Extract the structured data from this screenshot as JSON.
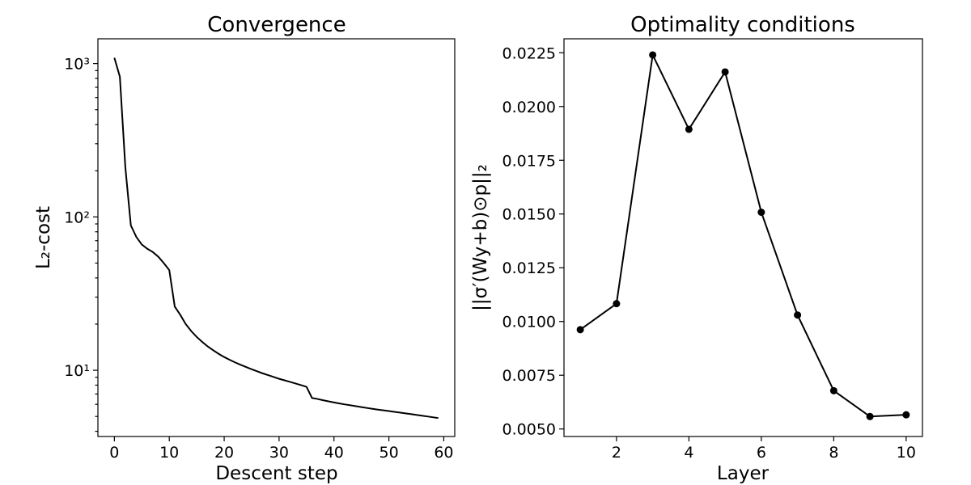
{
  "chart_data": [
    {
      "type": "line",
      "title": "Convergence",
      "xlabel": "Descent step",
      "ylabel": "L₂-cost",
      "yscale": "log",
      "xlim": [
        -3,
        62
      ],
      "ylim": [
        3.7,
        1450
      ],
      "xticks": [
        0,
        10,
        20,
        30,
        40,
        50,
        60
      ],
      "yticks": [
        10,
        100,
        1000
      ],
      "ytick_labels": [
        "10¹",
        "10²",
        "10³"
      ],
      "grid": false,
      "series": [
        {
          "color": "#000000",
          "x": [
            0,
            1,
            2,
            3,
            4,
            5,
            6,
            7,
            8,
            9,
            10,
            11,
            12,
            13,
            14,
            15,
            16,
            17,
            18,
            19,
            20,
            21,
            22,
            23,
            24,
            25,
            26,
            27,
            28,
            29,
            30,
            31,
            32,
            33,
            34,
            35,
            36,
            37,
            38,
            39,
            40,
            41,
            42,
            43,
            44,
            45,
            46,
            47,
            48,
            49,
            50,
            51,
            52,
            53,
            54,
            55,
            56,
            57,
            58,
            59
          ],
          "y": [
            1090,
            820,
            210,
            88,
            74,
            66,
            62,
            59,
            55,
            50,
            45,
            26,
            23,
            20,
            18,
            16.5,
            15.3,
            14.3,
            13.5,
            12.8,
            12.2,
            11.7,
            11.25,
            10.85,
            10.5,
            10.15,
            9.85,
            9.55,
            9.3,
            9.05,
            8.8,
            8.6,
            8.4,
            8.2,
            8.0,
            7.8,
            6.6,
            6.5,
            6.38,
            6.27,
            6.17,
            6.08,
            5.99,
            5.91,
            5.83,
            5.75,
            5.68,
            5.61,
            5.54,
            5.48,
            5.42,
            5.36,
            5.3,
            5.24,
            5.18,
            5.12,
            5.06,
            5.0,
            4.94,
            4.88
          ]
        }
      ]
    },
    {
      "type": "line",
      "title": "Optimality conditions",
      "xlabel": "Layer",
      "ylabel": "||σ′(Wy+b)⊙p||₂",
      "xlim": [
        0.55,
        10.45
      ],
      "ylim": [
        0.00465,
        0.02315
      ],
      "xticks": [
        2,
        4,
        6,
        8,
        10
      ],
      "yticks": [
        0.005,
        0.0075,
        0.01,
        0.0125,
        0.015,
        0.0175,
        0.02,
        0.0225
      ],
      "ytick_labels": [
        "0.0050",
        "0.0075",
        "0.0100",
        "0.0125",
        "0.0150",
        "0.0175",
        "0.0200",
        "0.0225"
      ],
      "grid": false,
      "series": [
        {
          "color": "#000000",
          "marker": "circle",
          "x": [
            1,
            2,
            3,
            4,
            5,
            6,
            7,
            8,
            9,
            10
          ],
          "y": [
            0.00962,
            0.01083,
            0.0224,
            0.01894,
            0.02161,
            0.01508,
            0.0103,
            0.00678,
            0.00558,
            0.00566
          ]
        }
      ]
    }
  ]
}
